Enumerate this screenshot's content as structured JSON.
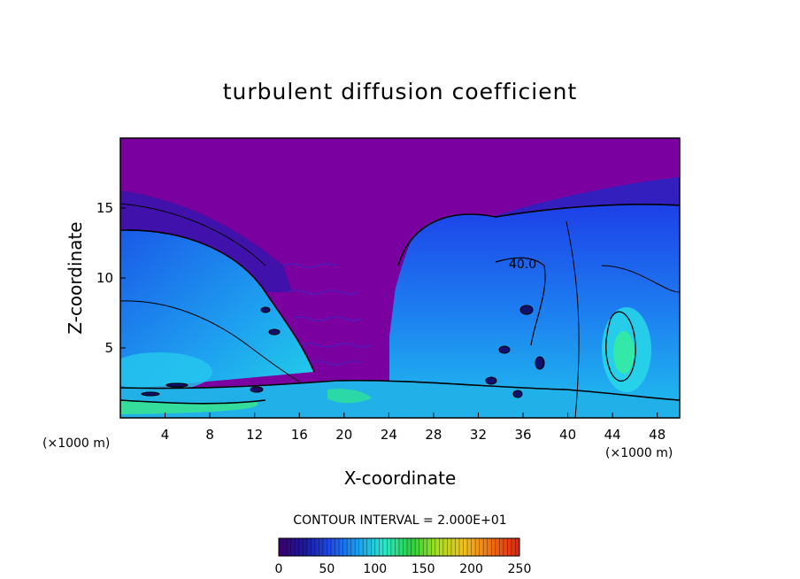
{
  "chart_data": {
    "type": "heatmap",
    "title": "turbulent diffusion coefficient",
    "xlabel": "X-coordinate",
    "ylabel": "Z-coordinate",
    "x_unit_label": "(×1000 m)",
    "x_unit_label_right": "(×1000 m)",
    "xlim": [
      0,
      50
    ],
    "ylim": [
      0,
      20
    ],
    "x_ticks": [
      4,
      8,
      12,
      16,
      20,
      24,
      28,
      32,
      36,
      40,
      44,
      48
    ],
    "y_ticks": [
      5,
      10,
      15
    ],
    "contour_interval_text": "CONTOUR INTERVAL = 2.000E+01",
    "contour_label": "40.0",
    "colorbar": {
      "min": 0,
      "max": 250,
      "tick_values": [
        0,
        50,
        100,
        150,
        200,
        250
      ],
      "colors": [
        "#3a006b",
        "#1a1aa0",
        "#1f4fe8",
        "#1aa0f0",
        "#2de8c8",
        "#2ad040",
        "#a8e020",
        "#f0c020",
        "#f07010",
        "#e02010"
      ]
    },
    "background_color": "#7a00a0"
  }
}
